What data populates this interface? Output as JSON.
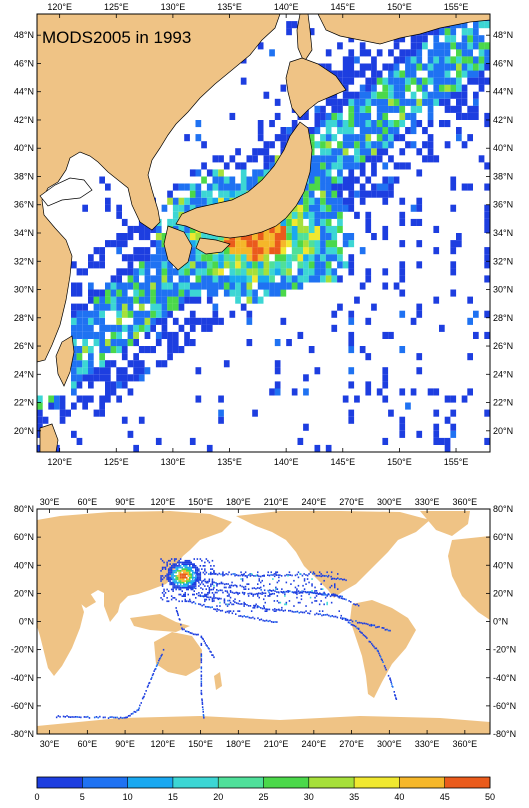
{
  "title": "MODS2005 in 1993",
  "colors": {
    "land": "#efc385",
    "ocean": "#ffffff",
    "frame": "#000000"
  },
  "top_map": {
    "region": "Northwest Pacific",
    "lon_range": [
      118,
      158
    ],
    "lat_range": [
      18.5,
      49.5
    ],
    "x_ticks": [
      "120°E",
      "125°E",
      "130°E",
      "135°E",
      "140°E",
      "145°E",
      "150°E",
      "155°E"
    ],
    "y_ticks": [
      "48°N",
      "46°N",
      "44°N",
      "42°N",
      "40°N",
      "38°N",
      "36°N",
      "34°N",
      "32°N",
      "30°N",
      "28°N",
      "26°N",
      "24°N",
      "22°N",
      "20°N"
    ]
  },
  "bottom_map": {
    "region": "World",
    "lon_range": [
      20,
      380
    ],
    "lat_range": [
      -80,
      80
    ],
    "x_ticks": [
      "30°E",
      "60°E",
      "90°E",
      "120°E",
      "150°E",
      "180°E",
      "210°E",
      "240°E",
      "270°E",
      "300°E",
      "330°E",
      "360°E"
    ],
    "y_ticks": [
      "80°N",
      "60°N",
      "40°N",
      "20°N",
      "0°N",
      "-20°N",
      "-40°N",
      "-60°N",
      "-80°N"
    ]
  },
  "colorbar": {
    "labels": [
      "0",
      "5",
      "10",
      "15",
      "20",
      "25",
      "30",
      "35",
      "40",
      "45",
      "50"
    ],
    "colors": [
      "#1d3ee0",
      "#1f72f2",
      "#19a8f0",
      "#3cd6d4",
      "#4fe09a",
      "#4bd84a",
      "#a6e03a",
      "#f0e830",
      "#f5b72a",
      "#ea5b1c"
    ]
  }
}
